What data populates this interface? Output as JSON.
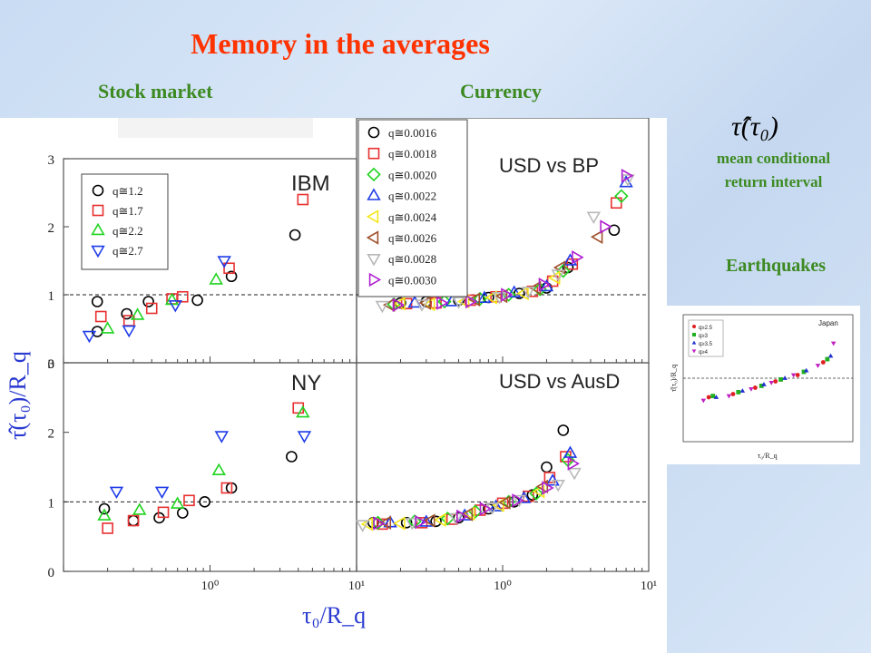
{
  "header": {
    "title": "Memory in the averages",
    "stock_label": "Stock market",
    "currency_label": "Currency"
  },
  "side": {
    "formula_text": "τ̂(τ₀)",
    "mean_label_line1": "mean conditional",
    "mean_label_line2": "return interval",
    "earthquakes_label": "Earthquakes"
  },
  "colors": {
    "title": "#ff3300",
    "labels": "#3d8a22",
    "axis_label": "#2a3ad0",
    "q1": "#000000",
    "q2": "#e83030",
    "q3": "#1fd41f",
    "q4": "#1f3ce8",
    "q5": "#f4e81a",
    "q6": "#a0522d",
    "q7": "#b8b8b8",
    "q8": "#b020d0"
  },
  "chart_data": [
    {
      "type": "scatter",
      "panel": "IBM",
      "xscale": "log",
      "xlim": [
        0.1,
        10
      ],
      "ylim": [
        0,
        3
      ],
      "yticks": [
        "0",
        "1",
        "2",
        "3"
      ],
      "reference_line": 1,
      "legend": [
        "q≅1.2",
        "q≅1.7",
        "q≅2.2",
        "q≅2.7"
      ],
      "series": [
        {
          "name": "q≅1.2",
          "marker": "circle",
          "color": "#000000",
          "points": [
            [
              0.17,
              0.9
            ],
            [
              0.17,
              0.46
            ],
            [
              0.27,
              0.72
            ],
            [
              0.38,
              0.9
            ],
            [
              0.82,
              0.92
            ],
            [
              1.4,
              1.27
            ],
            [
              3.8,
              1.88
            ]
          ]
        },
        {
          "name": "q≅1.7",
          "marker": "square",
          "color": "#e83030",
          "points": [
            [
              0.18,
              0.68
            ],
            [
              0.28,
              0.62
            ],
            [
              0.4,
              0.8
            ],
            [
              0.55,
              0.94
            ],
            [
              0.65,
              0.97
            ],
            [
              1.35,
              1.39
            ],
            [
              4.3,
              2.4
            ]
          ]
        },
        {
          "name": "q≅2.2",
          "marker": "triangle-up",
          "color": "#1fd41f",
          "points": [
            [
              0.2,
              0.5
            ],
            [
              0.32,
              0.7
            ],
            [
              0.55,
              0.92
            ],
            [
              1.1,
              1.22
            ]
          ]
        },
        {
          "name": "q≅2.7",
          "marker": "triangle-down",
          "color": "#1f3ce8",
          "points": [
            [
              0.15,
              0.4
            ],
            [
              0.28,
              0.48
            ],
            [
              0.58,
              0.85
            ],
            [
              1.25,
              1.5
            ]
          ]
        }
      ]
    },
    {
      "type": "scatter",
      "panel": "NY",
      "xscale": "log",
      "xlim": [
        0.1,
        10
      ],
      "ylim": [
        0,
        3
      ],
      "xticks": [
        "10⁰"
      ],
      "yticks": [
        "0",
        "1",
        "2",
        "3"
      ],
      "reference_line": 1,
      "series": [
        {
          "name": "q≅1.2",
          "marker": "circle",
          "color": "#000000",
          "points": [
            [
              0.19,
              0.9
            ],
            [
              0.3,
              0.73
            ],
            [
              0.45,
              0.77
            ],
            [
              0.65,
              0.84
            ],
            [
              0.92,
              1.0
            ],
            [
              1.4,
              1.2
            ],
            [
              3.6,
              1.65
            ]
          ]
        },
        {
          "name": "q≅1.7",
          "marker": "square",
          "color": "#e83030",
          "points": [
            [
              0.2,
              0.62
            ],
            [
              0.3,
              0.73
            ],
            [
              0.48,
              0.85
            ],
            [
              0.72,
              1.02
            ],
            [
              1.3,
              1.2
            ],
            [
              4.0,
              2.35
            ]
          ]
        },
        {
          "name": "q≅2.2",
          "marker": "triangle-up",
          "color": "#1fd41f",
          "points": [
            [
              0.19,
              0.8
            ],
            [
              0.33,
              0.88
            ],
            [
              0.6,
              0.97
            ],
            [
              1.15,
              1.45
            ],
            [
              4.3,
              2.28
            ]
          ]
        },
        {
          "name": "q≅2.7",
          "marker": "triangle-down",
          "color": "#1f3ce8",
          "points": [
            [
              0.23,
              1.15
            ],
            [
              0.47,
              1.15
            ],
            [
              1.2,
              1.95
            ],
            [
              4.4,
              1.95
            ]
          ]
        }
      ]
    },
    {
      "type": "scatter",
      "panel": "USD vs BP",
      "xscale": "log",
      "xlim": [
        0.1,
        10
      ],
      "reference_line": 1,
      "legend": [
        "q≅0.0016",
        "q≅0.0018",
        "q≅0.0020",
        "q≅0.0022",
        "q≅0.0024",
        "q≅0.0026",
        "q≅0.0028",
        "q≅0.0030"
      ],
      "series": [
        {
          "name": "q≅0.0016",
          "marker": "circle",
          "color": "#000000",
          "points": [
            [
              0.2,
              0.88
            ],
            [
              0.3,
              0.9
            ],
            [
              0.5,
              0.92
            ],
            [
              0.8,
              0.96
            ],
            [
              1.3,
              1.02
            ],
            [
              2.0,
              1.1
            ],
            [
              2.8,
              1.4
            ],
            [
              5.8,
              1.95
            ]
          ]
        },
        {
          "name": "q≅0.0018",
          "marker": "square",
          "color": "#e83030",
          "points": [
            [
              0.22,
              0.87
            ],
            [
              0.35,
              0.88
            ],
            [
              0.6,
              0.92
            ],
            [
              0.9,
              0.97
            ],
            [
              1.6,
              1.05
            ],
            [
              2.2,
              1.2
            ],
            [
              3.0,
              1.45
            ],
            [
              6.0,
              2.35
            ]
          ]
        },
        {
          "name": "q≅0.0020",
          "marker": "diamond",
          "color": "#1fd41f",
          "points": [
            [
              0.18,
              0.86
            ],
            [
              0.4,
              0.9
            ],
            [
              0.7,
              0.94
            ],
            [
              1.1,
              1.0
            ],
            [
              1.8,
              1.08
            ],
            [
              2.6,
              1.35
            ],
            [
              6.5,
              2.45
            ]
          ]
        },
        {
          "name": "q≅0.0022",
          "marker": "triangle-up",
          "color": "#1f3ce8",
          "points": [
            [
              0.25,
              0.88
            ],
            [
              0.45,
              0.9
            ],
            [
              0.75,
              0.95
            ],
            [
              1.2,
              1.03
            ],
            [
              2.0,
              1.12
            ],
            [
              2.9,
              1.5
            ],
            [
              7.0,
              2.65
            ]
          ]
        },
        {
          "name": "q≅0.0024",
          "marker": "triangle-left",
          "color": "#f4e81a",
          "points": [
            [
              0.2,
              0.87
            ],
            [
              0.32,
              0.86
            ],
            [
              0.55,
              0.9
            ],
            [
              0.85,
              0.96
            ],
            [
              1.4,
              1.02
            ],
            [
              2.3,
              1.25
            ]
          ]
        },
        {
          "name": "q≅0.0026",
          "marker": "triangle-left",
          "color": "#a0522d",
          "points": [
            [
              0.17,
              0.85
            ],
            [
              0.3,
              0.88
            ],
            [
              0.65,
              0.93
            ],
            [
              1.0,
              0.98
            ],
            [
              1.7,
              1.1
            ],
            [
              2.5,
              1.4
            ],
            [
              4.5,
              1.85
            ]
          ]
        },
        {
          "name": "q≅0.0028",
          "marker": "triangle-down",
          "color": "#b8b8b8",
          "points": [
            [
              0.15,
              0.84
            ],
            [
              0.28,
              0.86
            ],
            [
              0.5,
              0.9
            ],
            [
              0.95,
              0.97
            ],
            [
              1.5,
              1.05
            ],
            [
              2.4,
              1.3
            ],
            [
              4.2,
              2.15
            ],
            [
              7.2,
              2.7
            ]
          ]
        },
        {
          "name": "q≅0.0030",
          "marker": "triangle-right",
          "color": "#b020d0",
          "points": [
            [
              0.19,
              0.85
            ],
            [
              0.38,
              0.88
            ],
            [
              0.6,
              0.9
            ],
            [
              1.05,
              1.0
            ],
            [
              1.9,
              1.15
            ],
            [
              3.2,
              1.55
            ],
            [
              5.0,
              2.0
            ],
            [
              7.0,
              2.75
            ]
          ]
        }
      ]
    },
    {
      "type": "scatter",
      "panel": "USD vs AusD",
      "xscale": "log",
      "xlim": [
        0.1,
        10
      ],
      "xticks": [
        "10¹",
        "10⁰",
        "10¹"
      ],
      "reference_line": 1,
      "series": [
        {
          "name": "q≅0.0016",
          "marker": "circle",
          "color": "#000000",
          "points": [
            [
              0.13,
              0.7
            ],
            [
              0.22,
              0.7
            ],
            [
              0.35,
              0.72
            ],
            [
              0.5,
              0.77
            ],
            [
              0.8,
              0.9
            ],
            [
              1.2,
              1.0
            ],
            [
              1.6,
              1.1
            ],
            [
              2.0,
              1.5
            ],
            [
              2.6,
              2.03
            ]
          ]
        },
        {
          "name": "q≅0.0018",
          "marker": "square",
          "color": "#e83030",
          "points": [
            [
              0.15,
              0.68
            ],
            [
              0.28,
              0.7
            ],
            [
              0.45,
              0.75
            ],
            [
              0.7,
              0.88
            ],
            [
              1.0,
              0.98
            ],
            [
              1.5,
              1.08
            ],
            [
              2.1,
              1.35
            ],
            [
              2.7,
              1.65
            ]
          ]
        },
        {
          "name": "q≅0.0020",
          "marker": "diamond",
          "color": "#1fd41f",
          "points": [
            [
              0.14,
              0.7
            ],
            [
              0.25,
              0.72
            ],
            [
              0.42,
              0.76
            ],
            [
              0.65,
              0.86
            ],
            [
              1.1,
              1.0
            ],
            [
              1.7,
              1.12
            ],
            [
              2.8,
              1.6
            ]
          ]
        },
        {
          "name": "q≅0.0022",
          "marker": "triangle-up",
          "color": "#1f3ce8",
          "points": [
            [
              0.17,
              0.7
            ],
            [
              0.3,
              0.71
            ],
            [
              0.55,
              0.8
            ],
            [
              0.9,
              0.93
            ],
            [
              1.4,
              1.05
            ],
            [
              2.2,
              1.3
            ],
            [
              2.9,
              1.7
            ]
          ]
        },
        {
          "name": "q≅0.0024",
          "marker": "triangle-left",
          "color": "#f4e81a",
          "points": [
            [
              0.12,
              0.68
            ],
            [
              0.2,
              0.69
            ],
            [
              0.38,
              0.74
            ],
            [
              0.6,
              0.83
            ],
            [
              0.95,
              0.95
            ],
            [
              1.8,
              1.15
            ]
          ]
        },
        {
          "name": "q≅0.0026",
          "marker": "triangle-left",
          "color": "#a0522d",
          "points": [
            [
              0.16,
              0.7
            ],
            [
              0.32,
              0.73
            ],
            [
              0.58,
              0.82
            ],
            [
              1.05,
              0.99
            ],
            [
              1.9,
              1.22
            ]
          ]
        },
        {
          "name": "q≅0.0028",
          "marker": "triangle-down",
          "color": "#b8b8b8",
          "points": [
            [
              0.11,
              0.67
            ],
            [
              0.24,
              0.7
            ],
            [
              0.48,
              0.77
            ],
            [
              0.85,
              0.92
            ],
            [
              1.3,
              1.03
            ],
            [
              2.4,
              1.25
            ],
            [
              3.1,
              1.42
            ]
          ]
        },
        {
          "name": "q≅0.0030",
          "marker": "triangle-right",
          "color": "#b020d0",
          "points": [
            [
              0.14,
              0.69
            ],
            [
              0.27,
              0.71
            ],
            [
              0.52,
              0.79
            ],
            [
              0.75,
              0.9
            ],
            [
              1.25,
              1.02
            ],
            [
              2.0,
              1.2
            ],
            [
              3.0,
              1.55
            ]
          ]
        }
      ]
    },
    {
      "type": "scatter",
      "panel": "Japan",
      "xscale": "log",
      "xlim": [
        0.01,
        100
      ],
      "reference_line": 1,
      "legend": [
        "q≥2.5",
        "q≥3",
        "q≥3.5",
        "q≥4"
      ],
      "series": [
        {
          "name": "q≥2.5",
          "marker": "circle",
          "color": "#e02020",
          "points": [
            [
              0.04,
              0.7
            ],
            [
              0.15,
              0.75
            ],
            [
              0.5,
              0.85
            ],
            [
              1.5,
              0.95
            ],
            [
              5,
              1.05
            ],
            [
              20,
              1.25
            ]
          ]
        },
        {
          "name": "q≥3",
          "marker": "square",
          "color": "#20b020",
          "points": [
            [
              0.05,
              0.72
            ],
            [
              0.2,
              0.78
            ],
            [
              0.7,
              0.88
            ],
            [
              2,
              0.98
            ],
            [
              7,
              1.1
            ],
            [
              25,
              1.3
            ]
          ]
        },
        {
          "name": "q≥3.5",
          "marker": "triangle-up",
          "color": "#2030d0",
          "points": [
            [
              0.06,
              0.7
            ],
            [
              0.25,
              0.8
            ],
            [
              0.8,
              0.9
            ],
            [
              2.5,
              1.0
            ],
            [
              8,
              1.12
            ],
            [
              30,
              1.35
            ]
          ]
        },
        {
          "name": "q≥4",
          "marker": "triangle-down",
          "color": "#c020c0",
          "points": [
            [
              0.03,
              0.65
            ],
            [
              0.12,
              0.72
            ],
            [
              0.4,
              0.83
            ],
            [
              1.2,
              0.93
            ],
            [
              4,
              1.05
            ],
            [
              15,
              1.2
            ],
            [
              35,
              1.55
            ]
          ]
        }
      ]
    }
  ],
  "axis_labels": {
    "y": "τ̂(τ₀)/R_q",
    "x": "τ₀/R_q",
    "quake_y": "τ̂(τ₀)/R_q",
    "quake_x": "τ₀/R_q"
  }
}
